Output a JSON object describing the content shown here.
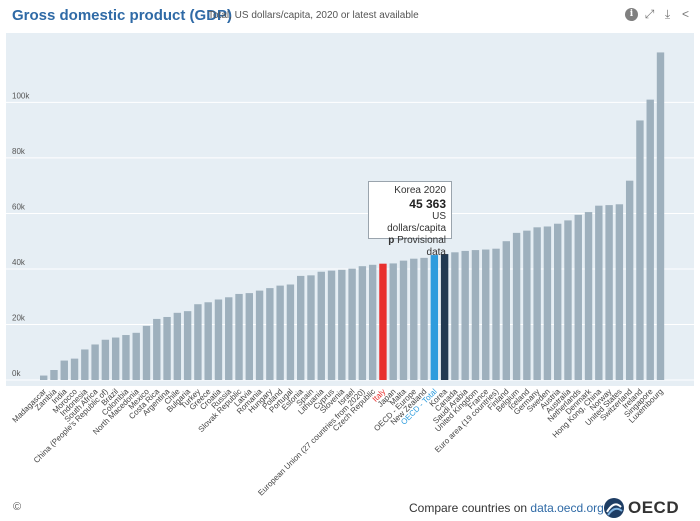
{
  "header": {
    "title": "Gross domestic product (GDP)",
    "subtitle": "Total, US dollars/capita, 2020 or latest available",
    "icons": [
      "info-icon",
      "fullscreen-icon",
      "download-icon",
      "share-icon"
    ]
  },
  "tooltip": {
    "country_year": "Korea 2020",
    "value": "45 363",
    "unit": "US dollars/capita",
    "flag_code": "p",
    "flag_text": "Provisional data"
  },
  "footer": {
    "copyright": "©",
    "compare_text": "Compare countries on ",
    "compare_link": "data.oecd.org",
    "logo_text": "OECD"
  },
  "colors": {
    "bar_default": "#9eb0bd",
    "bar_italy": "#e8302e",
    "bar_oecd": "#2e9cdd",
    "bar_korea": "#223a52",
    "plot_bg": "#e6eef4",
    "label_italy": "#e8302e",
    "label_oecd": "#2e9cdd",
    "title": "#2f6aa6"
  },
  "chart_data": {
    "type": "bar",
    "title": "Gross domestic product (GDP)",
    "subtitle": "Total, US dollars/capita, 2020 or latest available",
    "ylim": [
      0,
      125000
    ],
    "yticks": [
      0,
      20000,
      40000,
      60000,
      80000,
      100000
    ],
    "ytick_labels": [
      "0k",
      "20k",
      "40k",
      "60k",
      "80k",
      "100k"
    ],
    "categories": [
      "Madagascar",
      "Zambia",
      "India",
      "Morocco",
      "Indonesia",
      "South Africa",
      "China (People's Republic of)",
      "Brazil",
      "Colombia",
      "North Macedonia",
      "Mexico",
      "Costa Rica",
      "Argentina",
      "Chile",
      "Bulgaria",
      "Turkey",
      "Greece",
      "Croatia",
      "Russia",
      "Slovak Republic",
      "Latvia",
      "Romania",
      "Hungary",
      "Poland",
      "Portugal",
      "Estonia",
      "Spain",
      "Lithuania",
      "Cyprus",
      "Slovenia",
      "Israel",
      "European Union (27 countries from 2020)",
      "Czech Republic",
      "Italy",
      "Japan",
      "Malta",
      "OECD - Europe",
      "New Zealand",
      "OECD - Total",
      "Korea",
      "Canada",
      "Saudi Arabia",
      "United Kingdom",
      "France",
      "Euro area (19 countries)",
      "Finland",
      "Belgium",
      "Iceland",
      "Germany",
      "Sweden",
      "Austria",
      "Australia",
      "Netherlands",
      "Denmark",
      "Hong Kong, China",
      "Norway",
      "United States",
      "Switzerland",
      "Ireland",
      "Singapore",
      "Luxembourg"
    ],
    "values": [
      1600,
      3600,
      7000,
      7700,
      11000,
      12800,
      14500,
      15300,
      16200,
      17000,
      19500,
      22000,
      22700,
      24200,
      24800,
      27300,
      28000,
      29000,
      29800,
      31000,
      31300,
      32200,
      33100,
      34000,
      34400,
      37500,
      37700,
      39000,
      39400,
      39700,
      40100,
      41000,
      41500,
      41900,
      42000,
      43000,
      43700,
      44000,
      45000,
      45363,
      46000,
      46500,
      46800,
      47000,
      47300,
      50000,
      53000,
      53800,
      55000,
      55300,
      56300,
      57500,
      59500,
      60500,
      62800,
      63000,
      63300,
      71800,
      93500,
      101000,
      118000
    ],
    "highlight": {
      "Italy": "bar_italy",
      "OECD - Total": "bar_oecd",
      "Korea": "bar_korea"
    },
    "value_unit": "US dollars/capita"
  }
}
